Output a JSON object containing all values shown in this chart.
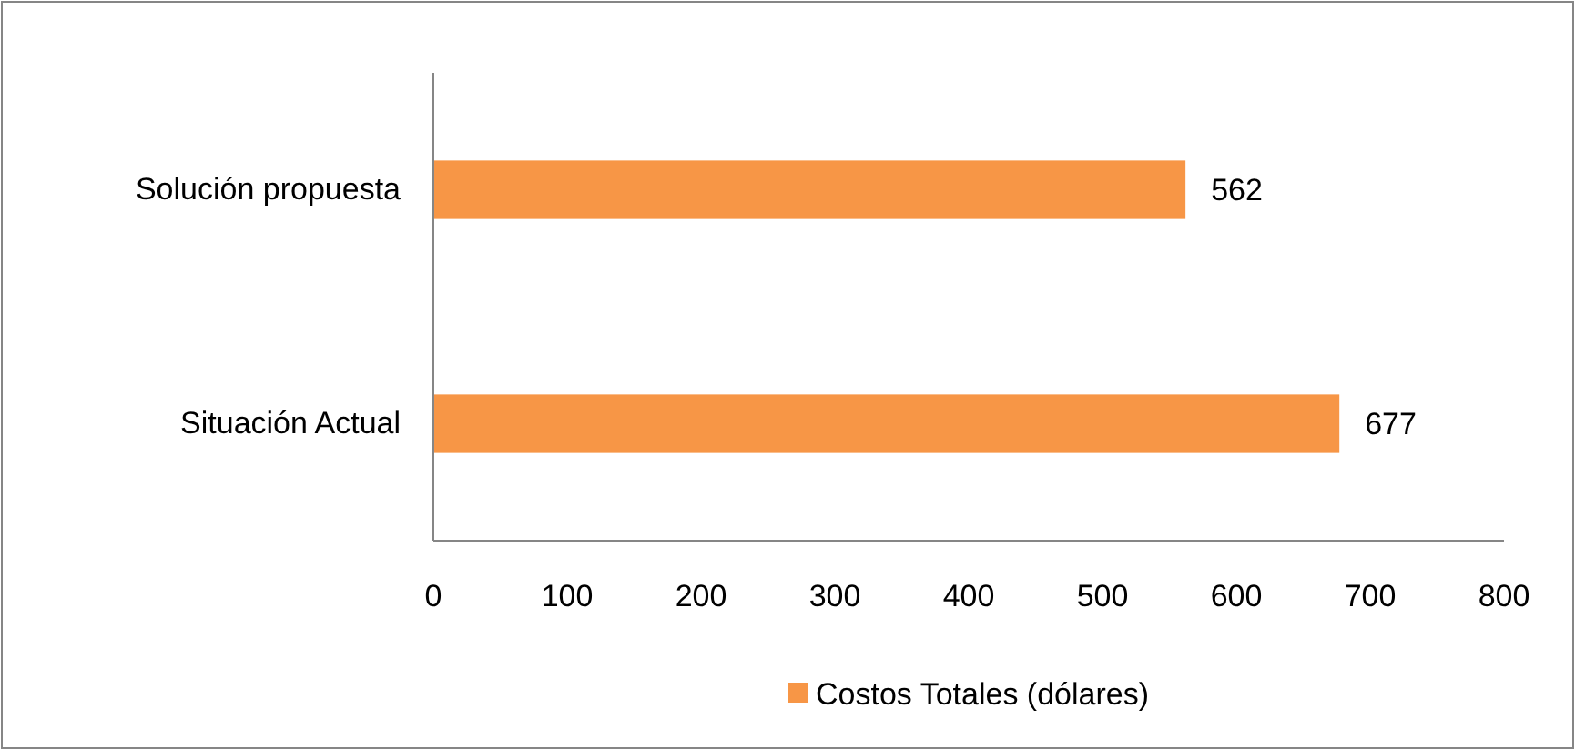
{
  "chart_data": {
    "type": "bar",
    "orientation": "horizontal",
    "categories": [
      "Solución propuesta",
      "Situación Actual"
    ],
    "series": [
      {
        "name": "Costos Totales (dólares)",
        "color": "#f79646",
        "values": [
          562,
          677
        ]
      }
    ],
    "xlim": [
      0,
      800
    ],
    "xticks": [
      0,
      100,
      200,
      300,
      400,
      500,
      600,
      700,
      800
    ],
    "data_labels": true,
    "legend": "bottom",
    "grid": false
  }
}
